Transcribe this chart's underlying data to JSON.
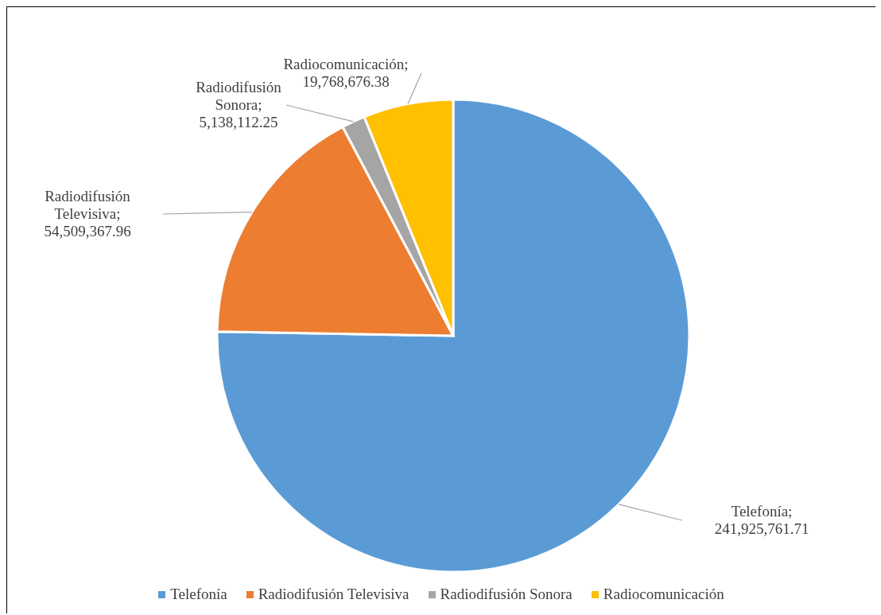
{
  "chart_data": {
    "type": "pie",
    "categories": [
      "Telefonía",
      "Radiodifusión Televisiva",
      "Radiodifusión Sonora",
      "Radiocomunicación"
    ],
    "values": [
      241925761.71,
      54509367.96,
      5138112.25,
      19768676.38
    ],
    "colors": [
      "#5b9bd5",
      "#ed7d31",
      "#a5a5a5",
      "#ffc000"
    ],
    "value_labels": [
      "Telefonía; 241,925,761.71",
      "Radiodifusión Televisiva; 54,509,367.96",
      "Radiodifusión Sonora; 5,138,112.25",
      "Radiocomunicación; 19,768,676.38"
    ],
    "legend": "bottom"
  }
}
